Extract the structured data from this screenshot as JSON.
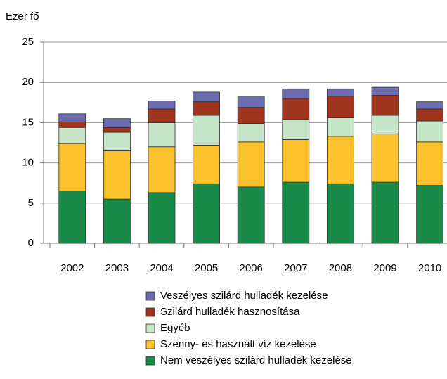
{
  "chart_data": {
    "type": "stacked_bar",
    "y_label": "Ezer fő",
    "categories": [
      "2002",
      "2003",
      "2004",
      "2005",
      "2006",
      "2007",
      "2008",
      "2009",
      "2010"
    ],
    "series": [
      {
        "name": "Nem veszélyes szilárd hulladék kezelése",
        "color": "#1a8a4a",
        "values": [
          6.5,
          5.5,
          6.3,
          7.4,
          7.0,
          7.6,
          7.4,
          7.6,
          7.2
        ]
      },
      {
        "name": "Szenny- és használt víz kezelése",
        "color": "#fcc22d",
        "values": [
          5.9,
          6.0,
          5.7,
          4.8,
          5.6,
          5.3,
          5.9,
          6.0,
          5.4
        ]
      },
      {
        "name": "Egyéb",
        "color": "#c6e5c8",
        "values": [
          2.0,
          2.3,
          3.0,
          3.7,
          2.3,
          2.5,
          2.3,
          2.3,
          2.6
        ]
      },
      {
        "name": "Szilárd hulladék hasznosítása",
        "color": "#a0351f",
        "values": [
          0.7,
          0.6,
          1.7,
          1.7,
          2.0,
          2.6,
          2.7,
          2.5,
          1.5
        ]
      },
      {
        "name": "Veszélyes szilárd hulladék kezelése",
        "color": "#6b6bb0",
        "values": [
          1.0,
          1.1,
          1.0,
          1.2,
          1.4,
          1.2,
          0.9,
          1.0,
          0.9
        ]
      }
    ],
    "ylim": [
      0,
      25
    ],
    "yticks": [
      0,
      5,
      10,
      15,
      20,
      25
    ],
    "grid": true
  }
}
